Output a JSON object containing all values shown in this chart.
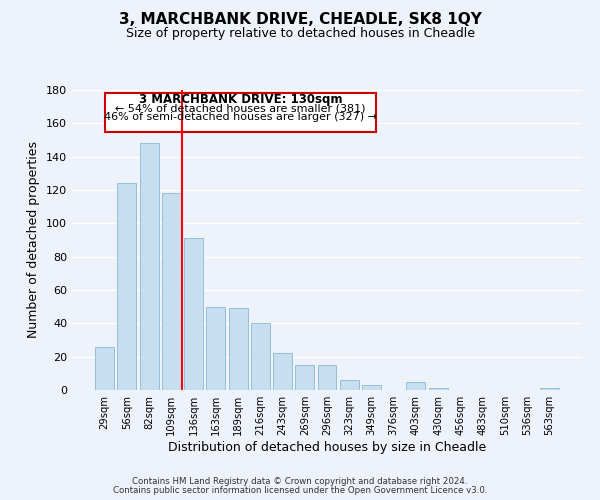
{
  "title": "3, MARCHBANK DRIVE, CHEADLE, SK8 1QY",
  "subtitle": "Size of property relative to detached houses in Cheadle",
  "xlabel": "Distribution of detached houses by size in Cheadle",
  "ylabel": "Number of detached properties",
  "bar_labels": [
    "29sqm",
    "56sqm",
    "82sqm",
    "109sqm",
    "136sqm",
    "163sqm",
    "189sqm",
    "216sqm",
    "243sqm",
    "269sqm",
    "296sqm",
    "323sqm",
    "349sqm",
    "376sqm",
    "403sqm",
    "430sqm",
    "456sqm",
    "483sqm",
    "510sqm",
    "536sqm",
    "563sqm"
  ],
  "bar_values": [
    26,
    124,
    148,
    118,
    91,
    50,
    49,
    40,
    22,
    15,
    15,
    6,
    3,
    0,
    5,
    1,
    0,
    0,
    0,
    0,
    1
  ],
  "bar_color": "#c5dff0",
  "bar_edge_color": "#8ab8d4",
  "vline_color": "red",
  "ylim": [
    0,
    180
  ],
  "yticks": [
    0,
    20,
    40,
    60,
    80,
    100,
    120,
    140,
    160,
    180
  ],
  "annotation_title": "3 MARCHBANK DRIVE: 130sqm",
  "annotation_line1": "← 54% of detached houses are smaller (381)",
  "annotation_line2": "46% of semi-detached houses are larger (327) →",
  "annotation_box_color": "#ffffff",
  "annotation_box_edge": "#cc0000",
  "footer_line1": "Contains HM Land Registry data © Crown copyright and database right 2024.",
  "footer_line2": "Contains public sector information licensed under the Open Government Licence v3.0.",
  "background_color": "#eef2fb",
  "grid_color": "#ffffff"
}
